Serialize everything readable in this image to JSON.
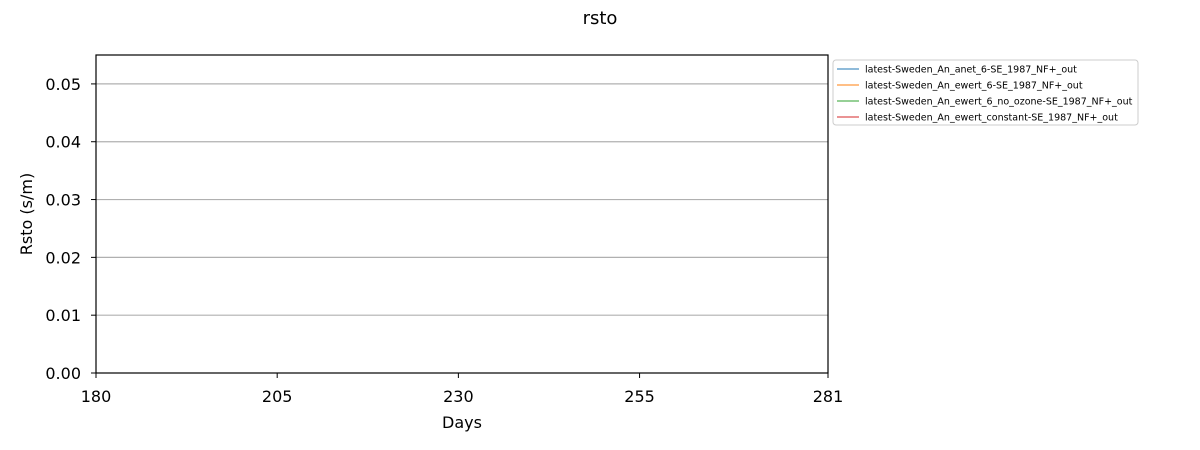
{
  "chart_data": {
    "type": "line",
    "title": "rsto",
    "xlabel": "Days",
    "ylabel": "Rsto (s/m)",
    "xlim": [
      180,
      281
    ],
    "ylim": [
      0,
      0.055
    ],
    "xticks": [
      180,
      205,
      230,
      255,
      281
    ],
    "xtick_labels": [
      "180",
      "205",
      "230",
      "255",
      "281"
    ],
    "yticks": [
      0,
      0.01,
      0.02,
      0.03,
      0.04,
      0.05
    ],
    "ytick_labels": [
      "0.00",
      "0.01",
      "0.02",
      "0.03",
      "0.04",
      "0.05"
    ],
    "grid": {
      "y": true,
      "x": false
    },
    "legend": {
      "placement": "outside-top-right"
    },
    "series": [
      {
        "name": "latest-Sweden_An_anet_6-SE_1987_NF+_out",
        "color": "#1f77b4",
        "x": [],
        "y": []
      },
      {
        "name": "latest-Sweden_An_ewert_6-SE_1987_NF+_out",
        "color": "#ff7f0e",
        "x": [],
        "y": []
      },
      {
        "name": "latest-Sweden_An_ewert_6_no_ozone-SE_1987_NF+_out",
        "color": "#2ca02c",
        "x": [],
        "y": []
      },
      {
        "name": "latest-Sweden_An_ewert_constant-SE_1987_NF+_out",
        "color": "#d62728",
        "x": [],
        "y": []
      }
    ]
  }
}
